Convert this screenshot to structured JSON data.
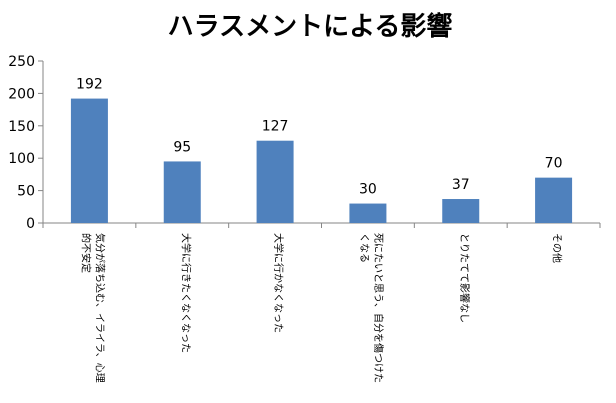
{
  "chart_data": {
    "type": "bar",
    "title": "ハラスメントによる影響",
    "categories": [
      "気分が落ち込む、イライラ、心理的不安定",
      "大学に行きたくなくなった",
      "大学に行かなくなった",
      "死にたいと思う、自分を傷つけたくなる",
      "とりたてて影響なし",
      "その他"
    ],
    "values": [
      192,
      95,
      127,
      30,
      37,
      70
    ],
    "yticks": [
      0,
      50,
      100,
      150,
      200,
      250
    ],
    "ylim": [
      0,
      250
    ],
    "xlabel": "",
    "ylabel": "",
    "grid": false,
    "legend": "none",
    "bar_color": "#4F81BD",
    "axis_color": "#868686"
  }
}
